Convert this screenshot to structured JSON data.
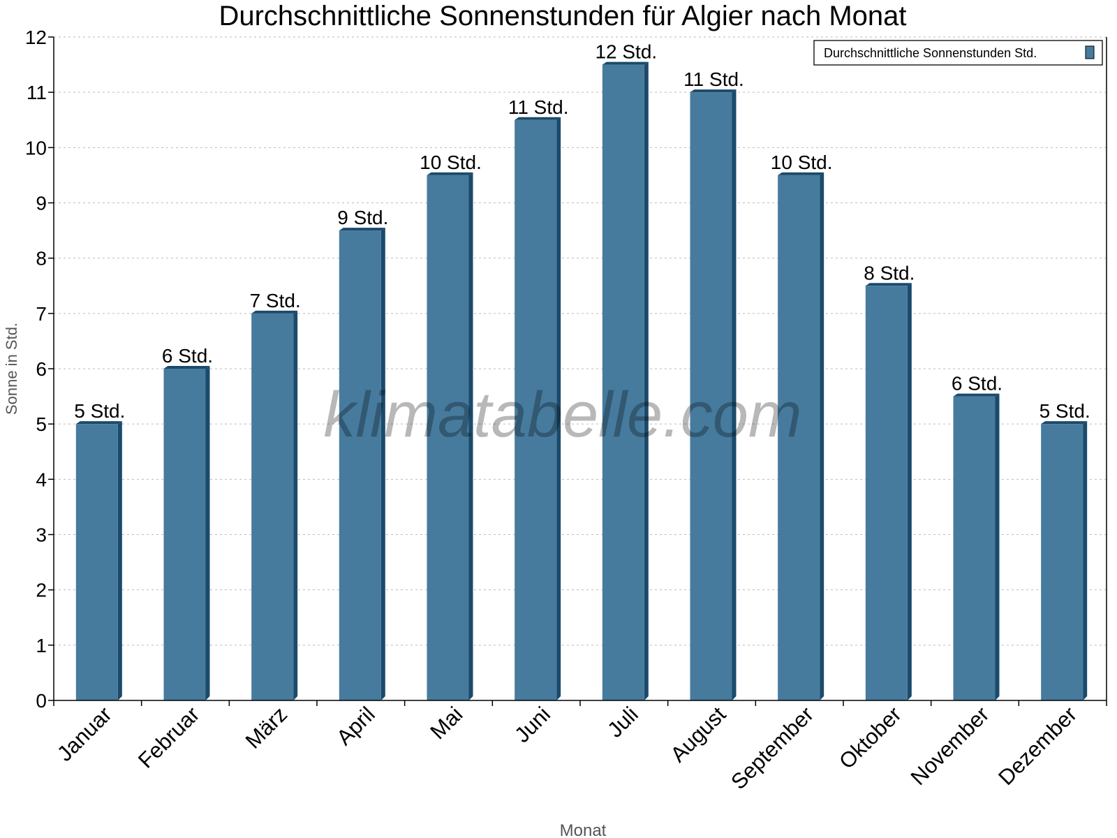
{
  "chart_data": {
    "type": "bar",
    "title": "Durchschnittliche Sonnenstunden für Algier nach Monat",
    "xlabel": "Monat",
    "ylabel": "Sonne in Std.",
    "ylim": [
      0,
      12
    ],
    "yticks": [
      "0",
      "1",
      "2",
      "3",
      "4",
      "5",
      "6",
      "7",
      "8",
      "9",
      "10",
      "11",
      "12"
    ],
    "grid": true,
    "legend_position": "top-right",
    "categories": [
      "Januar",
      "Februar",
      "März",
      "April",
      "Mai",
      "Juni",
      "Juli",
      "August",
      "September",
      "Oktober",
      "November",
      "Dezember"
    ],
    "series": [
      {
        "name": "Durchschnittliche Sonnenstunden Std.",
        "values": [
          5,
          6,
          7,
          8.5,
          9.5,
          10.5,
          11.5,
          11,
          9.5,
          7.5,
          5.5,
          5
        ],
        "data_labels": [
          "5 Std.",
          "6 Std.",
          "7 Std.",
          "9 Std.",
          "10 Std.",
          "11 Std.",
          "12 Std.",
          "11 Std.",
          "10 Std.",
          "8 Std.",
          "6 Std.",
          "5 Std."
        ]
      }
    ],
    "colors": {
      "bar": "#467b9e",
      "bar_side": "#1b4a6b"
    }
  },
  "watermark": "klimatabelle.com"
}
